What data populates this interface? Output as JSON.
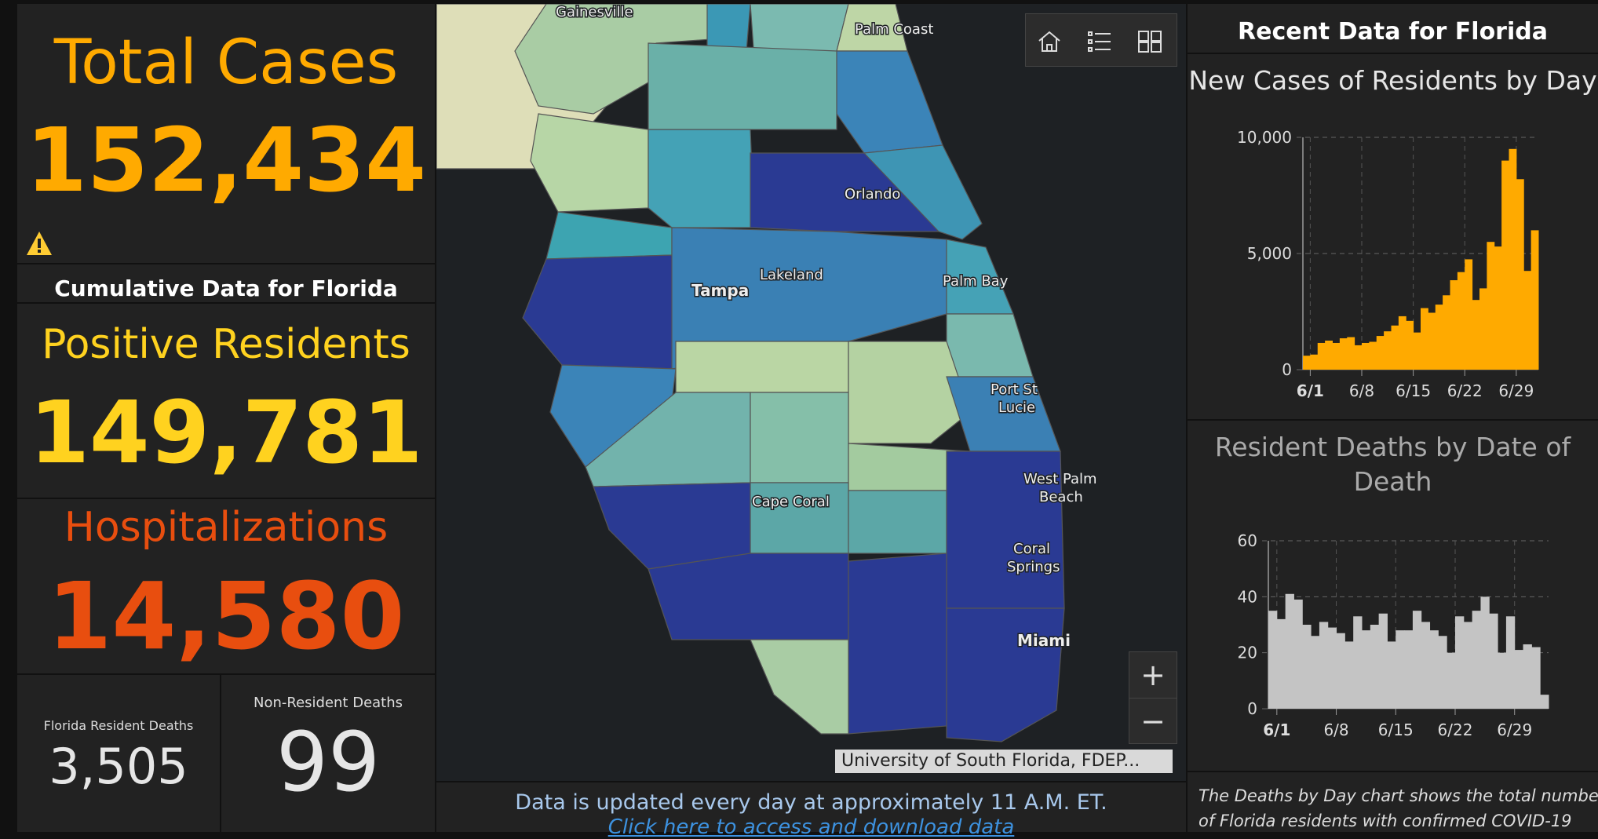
{
  "left": {
    "total_cases_label": "Total Cases",
    "total_cases_value": "152,434",
    "warning_icon": "warning-icon",
    "cumulative_title": "Cumulative Data for Florida",
    "positive_label": "Positive Residents",
    "positive_value": "149,781",
    "hosp_label": "Hospitalizations",
    "hosp_value": "14,580",
    "fl_deaths_label": "Florida Resident Deaths",
    "fl_deaths_value": "3,505",
    "nonres_label": "Non-Resident Deaths",
    "nonres_value": "99"
  },
  "map": {
    "labels": {
      "gainesville": "Gainesville",
      "palm_coast": "Palm Coast",
      "orlando": "Orlando",
      "lakeland": "Lakeland",
      "tampa": "Tampa",
      "palm_bay": "Palm Bay",
      "port_st": "Port St",
      "lucie": "Lucie",
      "west_palm": "West Palm",
      "beach": "Beach",
      "cape_coral": "Cape Coral",
      "coral": "Coral",
      "springs": "Springs",
      "miami": "Miami"
    },
    "attribution": "University of South Florida, FDEP...",
    "toolbar_icons": [
      "home-icon",
      "list-icon",
      "basemap-icon"
    ],
    "zoom_in": "+",
    "zoom_out": "−",
    "footer_text": "Data is updated every day at approximately 11 A.M. ET.",
    "footer_link": "Click here to access and download data"
  },
  "right": {
    "title": "Recent Data for Florida",
    "cases_chart_title": "New Cases of Residents by Day",
    "deaths_chart_title_1": "Resident Deaths by Date of",
    "deaths_chart_title_2": "Death",
    "footnote_1": "The Deaths by Day chart shows the total number",
    "footnote_2": "of Florida residents with confirmed COVID-19"
  },
  "colors": {
    "orange": "#ffaa00",
    "yellow": "#ffd21f",
    "red_orange": "#e84e0f",
    "gray_bar": "#c4c4c4"
  },
  "chart_data": [
    {
      "type": "bar",
      "title": "New Cases of Residents by Day",
      "x_tick_labels": [
        "6/1",
        "6/8",
        "6/15",
        "6/22",
        "6/29"
      ],
      "y_tick_labels": [
        "0",
        "5,000",
        "10,000"
      ],
      "ylim": [
        0,
        10000
      ],
      "color": "#ffaa00",
      "values": [
        600,
        650,
        1150,
        1250,
        1150,
        1350,
        1400,
        1050,
        1150,
        1200,
        1450,
        1650,
        1900,
        2300,
        2100,
        1600,
        2650,
        2450,
        2800,
        3200,
        3850,
        4200,
        4750,
        3000,
        3500,
        5500,
        5300,
        9000,
        9500,
        8200,
        4250,
        6000
      ]
    },
    {
      "type": "bar",
      "title": "Resident Deaths by Date of Death",
      "x_tick_labels": [
        "6/1",
        "6/8",
        "6/15",
        "6/22",
        "6/29"
      ],
      "y_tick_labels": [
        "0",
        "20",
        "40",
        "60"
      ],
      "ylim": [
        0,
        60
      ],
      "color": "#c4c4c4",
      "values": [
        35,
        32,
        41,
        39,
        30,
        26,
        31,
        29,
        27,
        24,
        33,
        28,
        30,
        34,
        24,
        28,
        28,
        35,
        31,
        28,
        26,
        20,
        33,
        31,
        35,
        40,
        34,
        20,
        33,
        21,
        23,
        22,
        5
      ]
    }
  ]
}
